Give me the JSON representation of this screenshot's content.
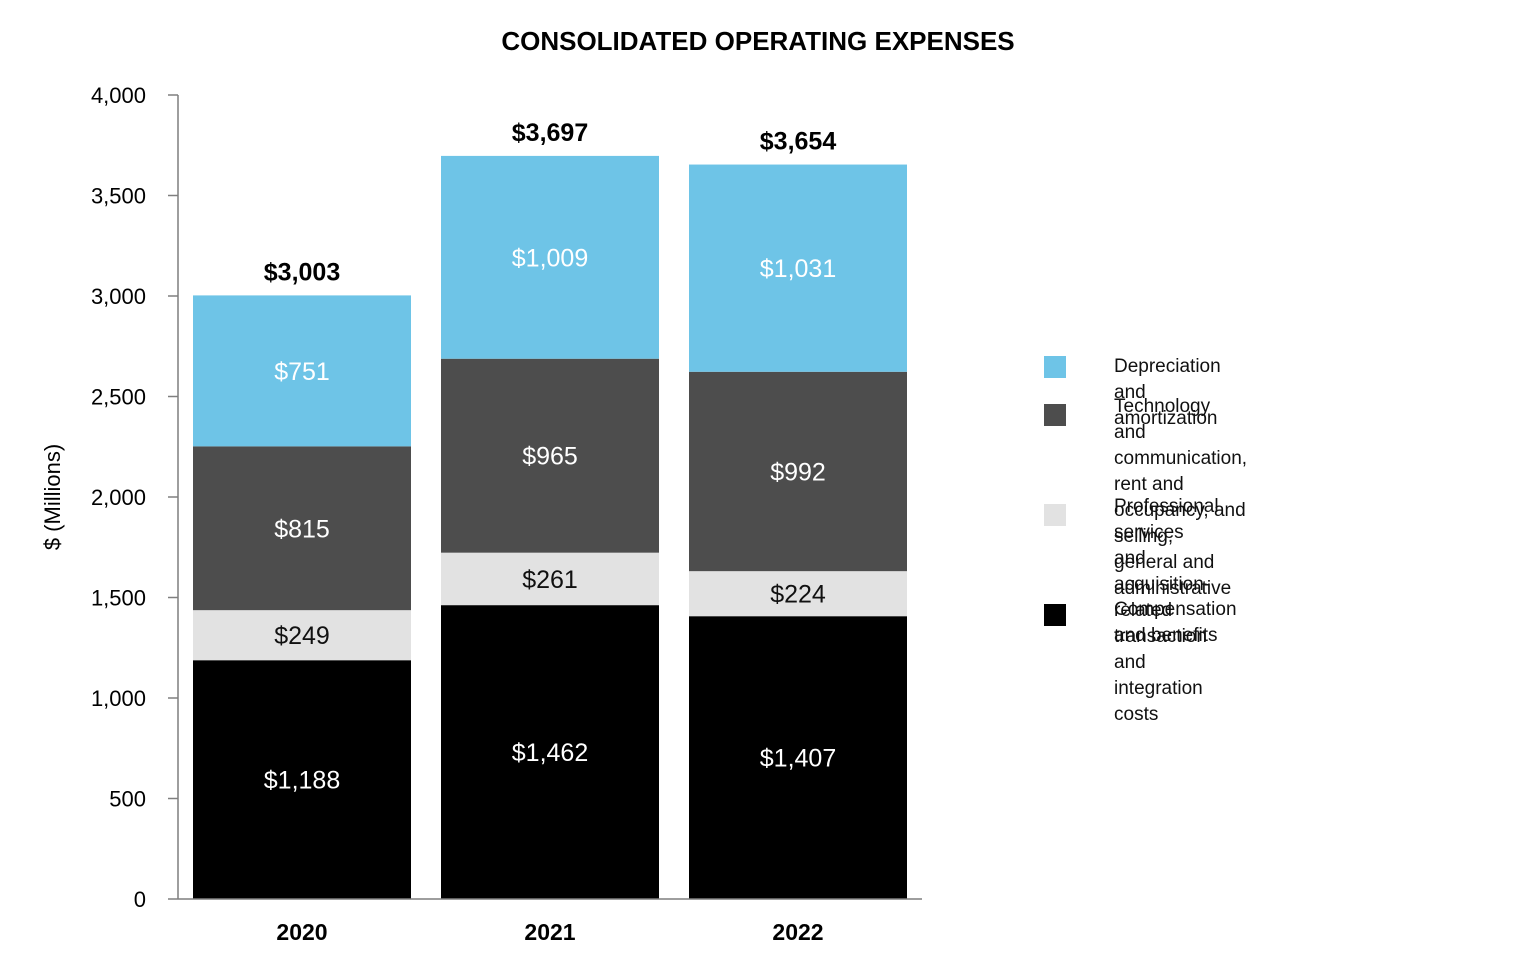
{
  "chart_data": {
    "type": "bar",
    "stacked": true,
    "title": "CONSOLIDATED OPERATING EXPENSES",
    "xlabel": "",
    "ylabel": "$ (Millions)",
    "ylim": [
      0,
      4000
    ],
    "yticks": [
      0,
      500,
      1000,
      1500,
      2000,
      2500,
      3000,
      3500,
      4000
    ],
    "ytick_labels": [
      "0",
      "500",
      "1,000",
      "1,500",
      "2,000",
      "2,500",
      "3,000",
      "3,500",
      "4,000"
    ],
    "categories": [
      "2020",
      "2021",
      "2022"
    ],
    "totals": [
      3003,
      3697,
      3654
    ],
    "total_labels": [
      "$3,003",
      "$3,697",
      "$3,654"
    ],
    "series": [
      {
        "name": "Compensation and benefits",
        "color": "#000000",
        "label_color": "#ffffff",
        "values": [
          1188,
          1462,
          1407
        ],
        "labels": [
          "$1,188",
          "$1,462",
          "$1,407"
        ]
      },
      {
        "name": "Professional services and\n acquisition-related  transaction\n and integration costs",
        "color": "#e2e2e2",
        "label_color": "#111111",
        "values": [
          249,
          261,
          224
        ],
        "labels": [
          "$249",
          "$261",
          "$224"
        ]
      },
      {
        "name": "Technology and communication,\nrent and occupancy, and selling,\ngeneral and administrative",
        "color": "#4d4d4d",
        "label_color": "#ffffff",
        "values": [
          815,
          965,
          992
        ],
        "labels": [
          "$815",
          "$965",
          "$992"
        ]
      },
      {
        "name": "Depreciation and amortization",
        "color": "#6ec4e7",
        "label_color": "#ffffff",
        "values": [
          751,
          1009,
          1031
        ],
        "labels": [
          "$751",
          "$1,009",
          "$1,031"
        ]
      }
    ],
    "legend_order": [
      3,
      2,
      1,
      0
    ],
    "legend_position": "right"
  }
}
